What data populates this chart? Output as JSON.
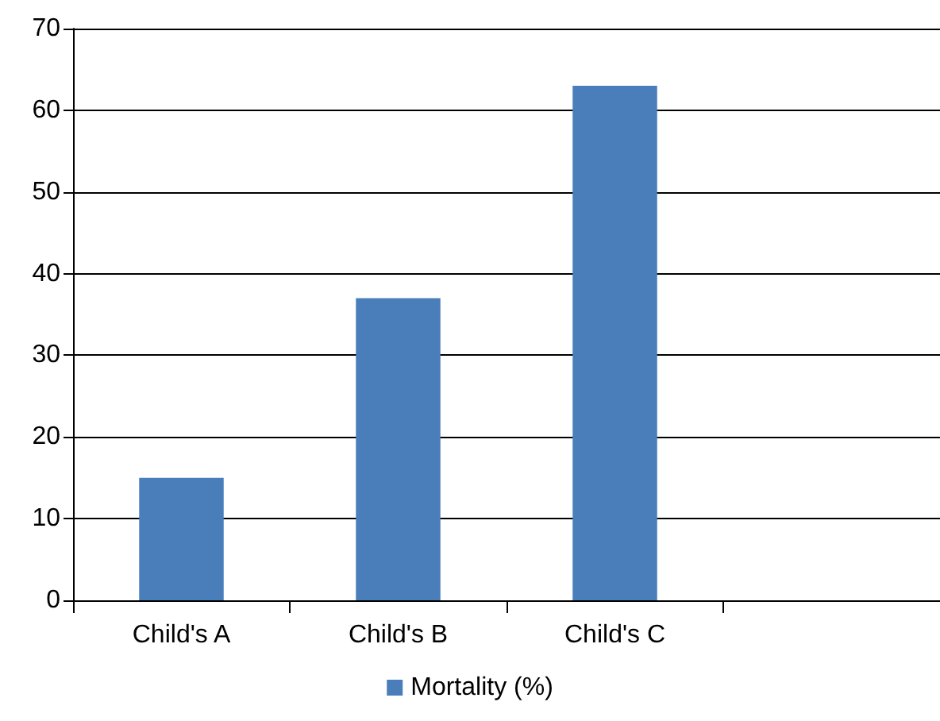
{
  "chart_data": {
    "type": "bar",
    "categories": [
      "Child's A",
      "Child's B",
      "Child's C",
      null
    ],
    "series": [
      {
        "name": "Mortality (%)",
        "color": "#4a7ebb",
        "values": [
          15,
          37,
          63,
          null
        ]
      }
    ],
    "ylim": [
      0,
      70
    ],
    "yticks": [
      0,
      10,
      20,
      30,
      40,
      50,
      60,
      70
    ],
    "grid": "y",
    "legend": "bottom"
  }
}
